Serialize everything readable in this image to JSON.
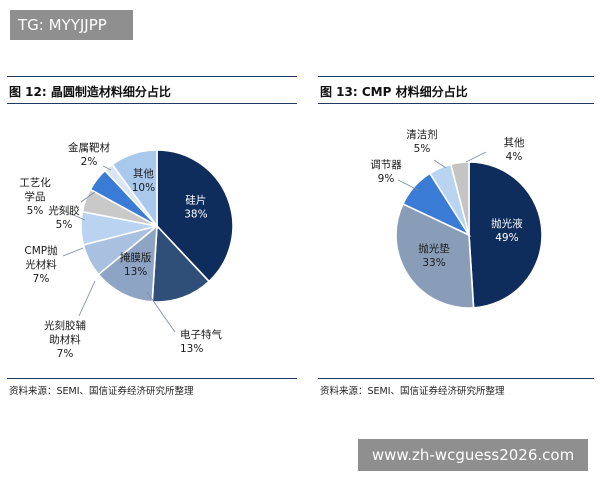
{
  "watermark_top": "TG: MYYJJPP",
  "watermark_bottom": "www.zh-wcguess2026.com",
  "chart_data": [
    {
      "type": "pie",
      "title": "图 12: 晶圆制造材料细分占比",
      "source": "资料来源：SEMI、国信证券经济研究所整理",
      "slices": [
        {
          "name": "硅片",
          "value": 38,
          "label": "38%",
          "color": "#0f2d5c"
        },
        {
          "name": "电子特气",
          "value": 13,
          "label": "13%",
          "color": "#2f4f78"
        },
        {
          "name": "掩膜版",
          "value": 13,
          "label": "13%",
          "color": "#8ea4c4"
        },
        {
          "name": "光刻胶辅助材料",
          "value": 7,
          "label": "7%",
          "color": "#a9c0e0"
        },
        {
          "name": "CMP抛光材料",
          "value": 7,
          "label": "7%",
          "color": "#b9d3f0"
        },
        {
          "name": "工艺化学品",
          "value": 5,
          "label": "5%",
          "color": "#c9c9c9"
        },
        {
          "name": "光刻胶",
          "value": 5,
          "label": "5%",
          "color": "#3a7bd5"
        },
        {
          "name": "金属靶材",
          "value": 2,
          "label": "2%",
          "color": "#dbe6f4"
        },
        {
          "name": "其他",
          "value": 10,
          "label": "10%",
          "color": "#a8c8ec"
        }
      ],
      "label_lines": {
        "硅片": [
          "硅片"
        ],
        "电子特气": [
          "电子特气"
        ],
        "掩膜版": [
          "掩膜版"
        ],
        "光刻胶辅助材料": [
          "光刻胶辅",
          "助材料"
        ],
        "CMP抛光材料": [
          "CMP抛",
          "光材料"
        ],
        "工艺化学品": [
          "工艺化",
          "学品"
        ],
        "光刻胶": [
          "光刻胶"
        ],
        "金属靶材": [
          "金属靶材"
        ],
        "其他": [
          "其他"
        ]
      }
    },
    {
      "type": "pie",
      "title": "图 13: CMP 材料细分占比",
      "source": "资料来源：SEMI、国信证券经济研究所整理",
      "slices": [
        {
          "name": "抛光液",
          "value": 49,
          "label": "49%",
          "color": "#0f2d5c"
        },
        {
          "name": "抛光垫",
          "value": 33,
          "label": "33%",
          "color": "#8a9db8"
        },
        {
          "name": "调节器",
          "value": 9,
          "label": "9%",
          "color": "#3a7bd5"
        },
        {
          "name": "清洁剂",
          "value": 5,
          "label": "5%",
          "color": "#b8d4f0"
        },
        {
          "name": "其他",
          "value": 4,
          "label": "4%",
          "color": "#c4c4c4"
        }
      ],
      "label_lines": {
        "抛光液": [
          "抛光液"
        ],
        "抛光垫": [
          "抛光垫"
        ],
        "调节器": [
          "调节器"
        ],
        "清洁剂": [
          "清洁剂"
        ],
        "其他": [
          "其他"
        ]
      }
    }
  ]
}
